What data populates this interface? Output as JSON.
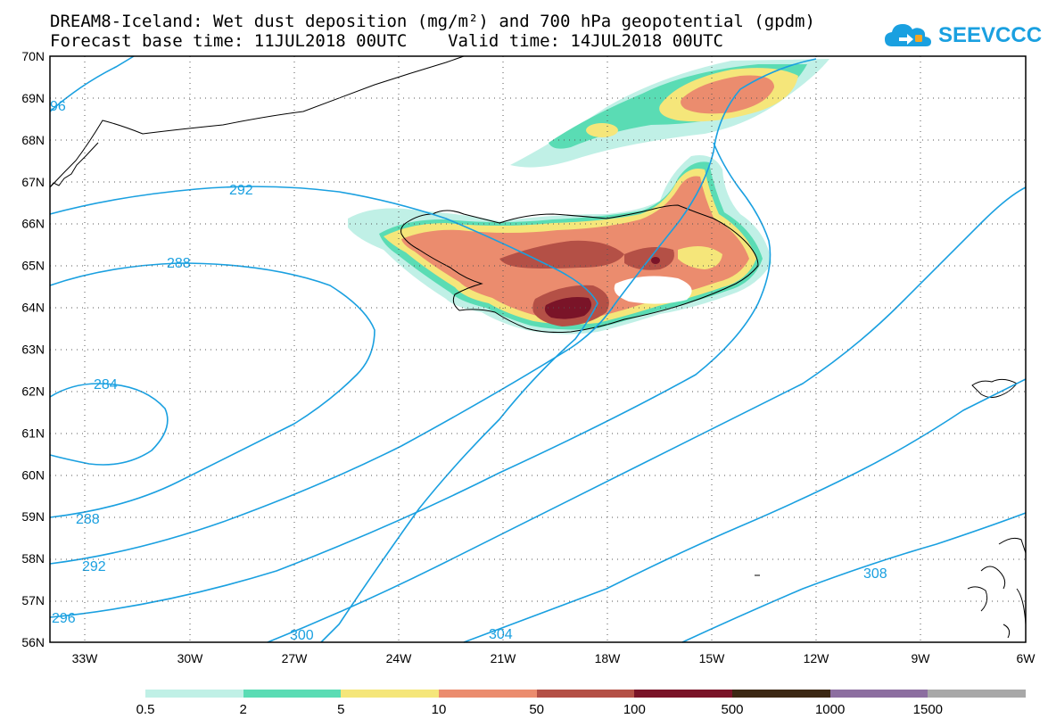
{
  "title": {
    "line1": "DREAM8-Iceland: Wet dust deposition (mg/m²) and 700 hPa geopotential (gpdm)",
    "line2": "Forecast base time: 11JUL2018 00UTC    Valid time: 14JUL2018 00UTC"
  },
  "logo": {
    "text": "SEEVCCC",
    "icon": "cloud-logo-icon"
  },
  "axes": {
    "lat_labels": [
      "70N",
      "69N",
      "68N",
      "67N",
      "66N",
      "65N",
      "64N",
      "63N",
      "62N",
      "61N",
      "60N",
      "59N",
      "58N",
      "57N",
      "56N"
    ],
    "lon_labels": [
      "33W",
      "30W",
      "27W",
      "24W",
      "21W",
      "18W",
      "15W",
      "12W",
      "9W",
      "6W"
    ]
  },
  "contours": {
    "color": "#1aa0e0",
    "labels": [
      "96",
      "292",
      "288",
      "284",
      "288",
      "292",
      "296",
      "300",
      "304",
      "308"
    ]
  },
  "legend": {
    "colors": [
      "#c0f0e6",
      "#5adcb4",
      "#f5e67a",
      "#eb8c6e",
      "#b45046",
      "#7a1428",
      "#3c2814",
      "#8c6ea0",
      "#a8a8a8"
    ],
    "labels": [
      "0.5",
      "2",
      "5",
      "10",
      "50",
      "100",
      "500",
      "1000",
      "1500"
    ]
  }
}
